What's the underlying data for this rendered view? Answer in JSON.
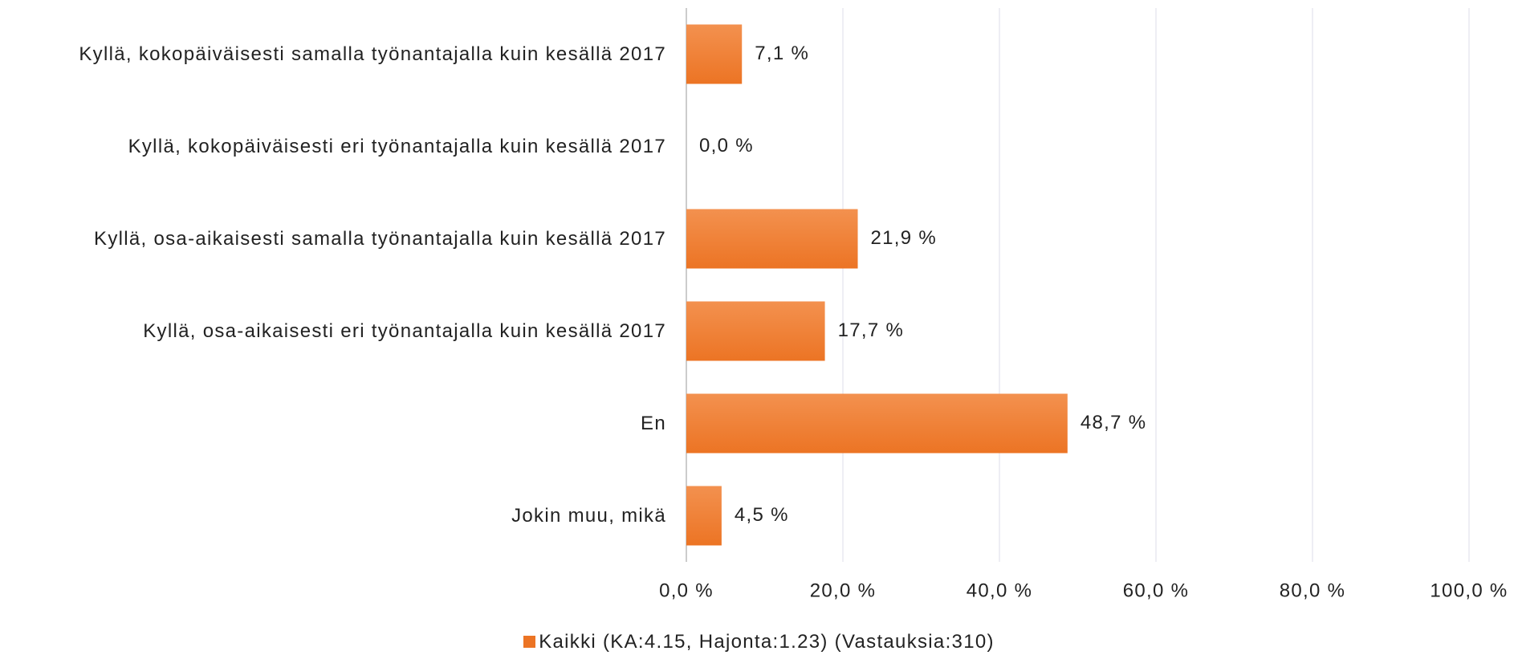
{
  "chart_data": {
    "type": "bar",
    "orientation": "horizontal",
    "categories": [
      "Kyllä, kokopäiväisesti samalla työnantajalla kuin kesällä 2017",
      "Kyllä, kokopäiväisesti eri työnantajalla kuin kesällä 2017",
      "Kyllä, osa-aikaisesti samalla työnantajalla kuin kesällä 2017",
      "Kyllä, osa-aikaisesti eri työnantajalla kuin kesällä 2017",
      "En",
      "Jokin muu, mikä"
    ],
    "series": [
      {
        "name": "Kaikki (KA:4.15, Hajonta:1.23) (Vastauksia:310)",
        "color": "#ec7424",
        "values": [
          7.1,
          0.0,
          21.9,
          17.7,
          48.7,
          4.5
        ],
        "value_labels": [
          "7,1 %",
          "0,0 %",
          "21,9 %",
          "17,7 %",
          "48,7 %",
          "4,5 %"
        ]
      }
    ],
    "xlim": [
      0,
      100
    ],
    "xticks": [
      {
        "value": 0,
        "label": "0,0 %"
      },
      {
        "value": 20,
        "label": "20,0 %"
      },
      {
        "value": 40,
        "label": "40,0 %"
      },
      {
        "value": 60,
        "label": "60,0 %"
      },
      {
        "value": 80,
        "label": "80,0 %"
      },
      {
        "value": 100,
        "label": "100,0 %"
      }
    ],
    "grid": true,
    "legend": "bottom"
  }
}
